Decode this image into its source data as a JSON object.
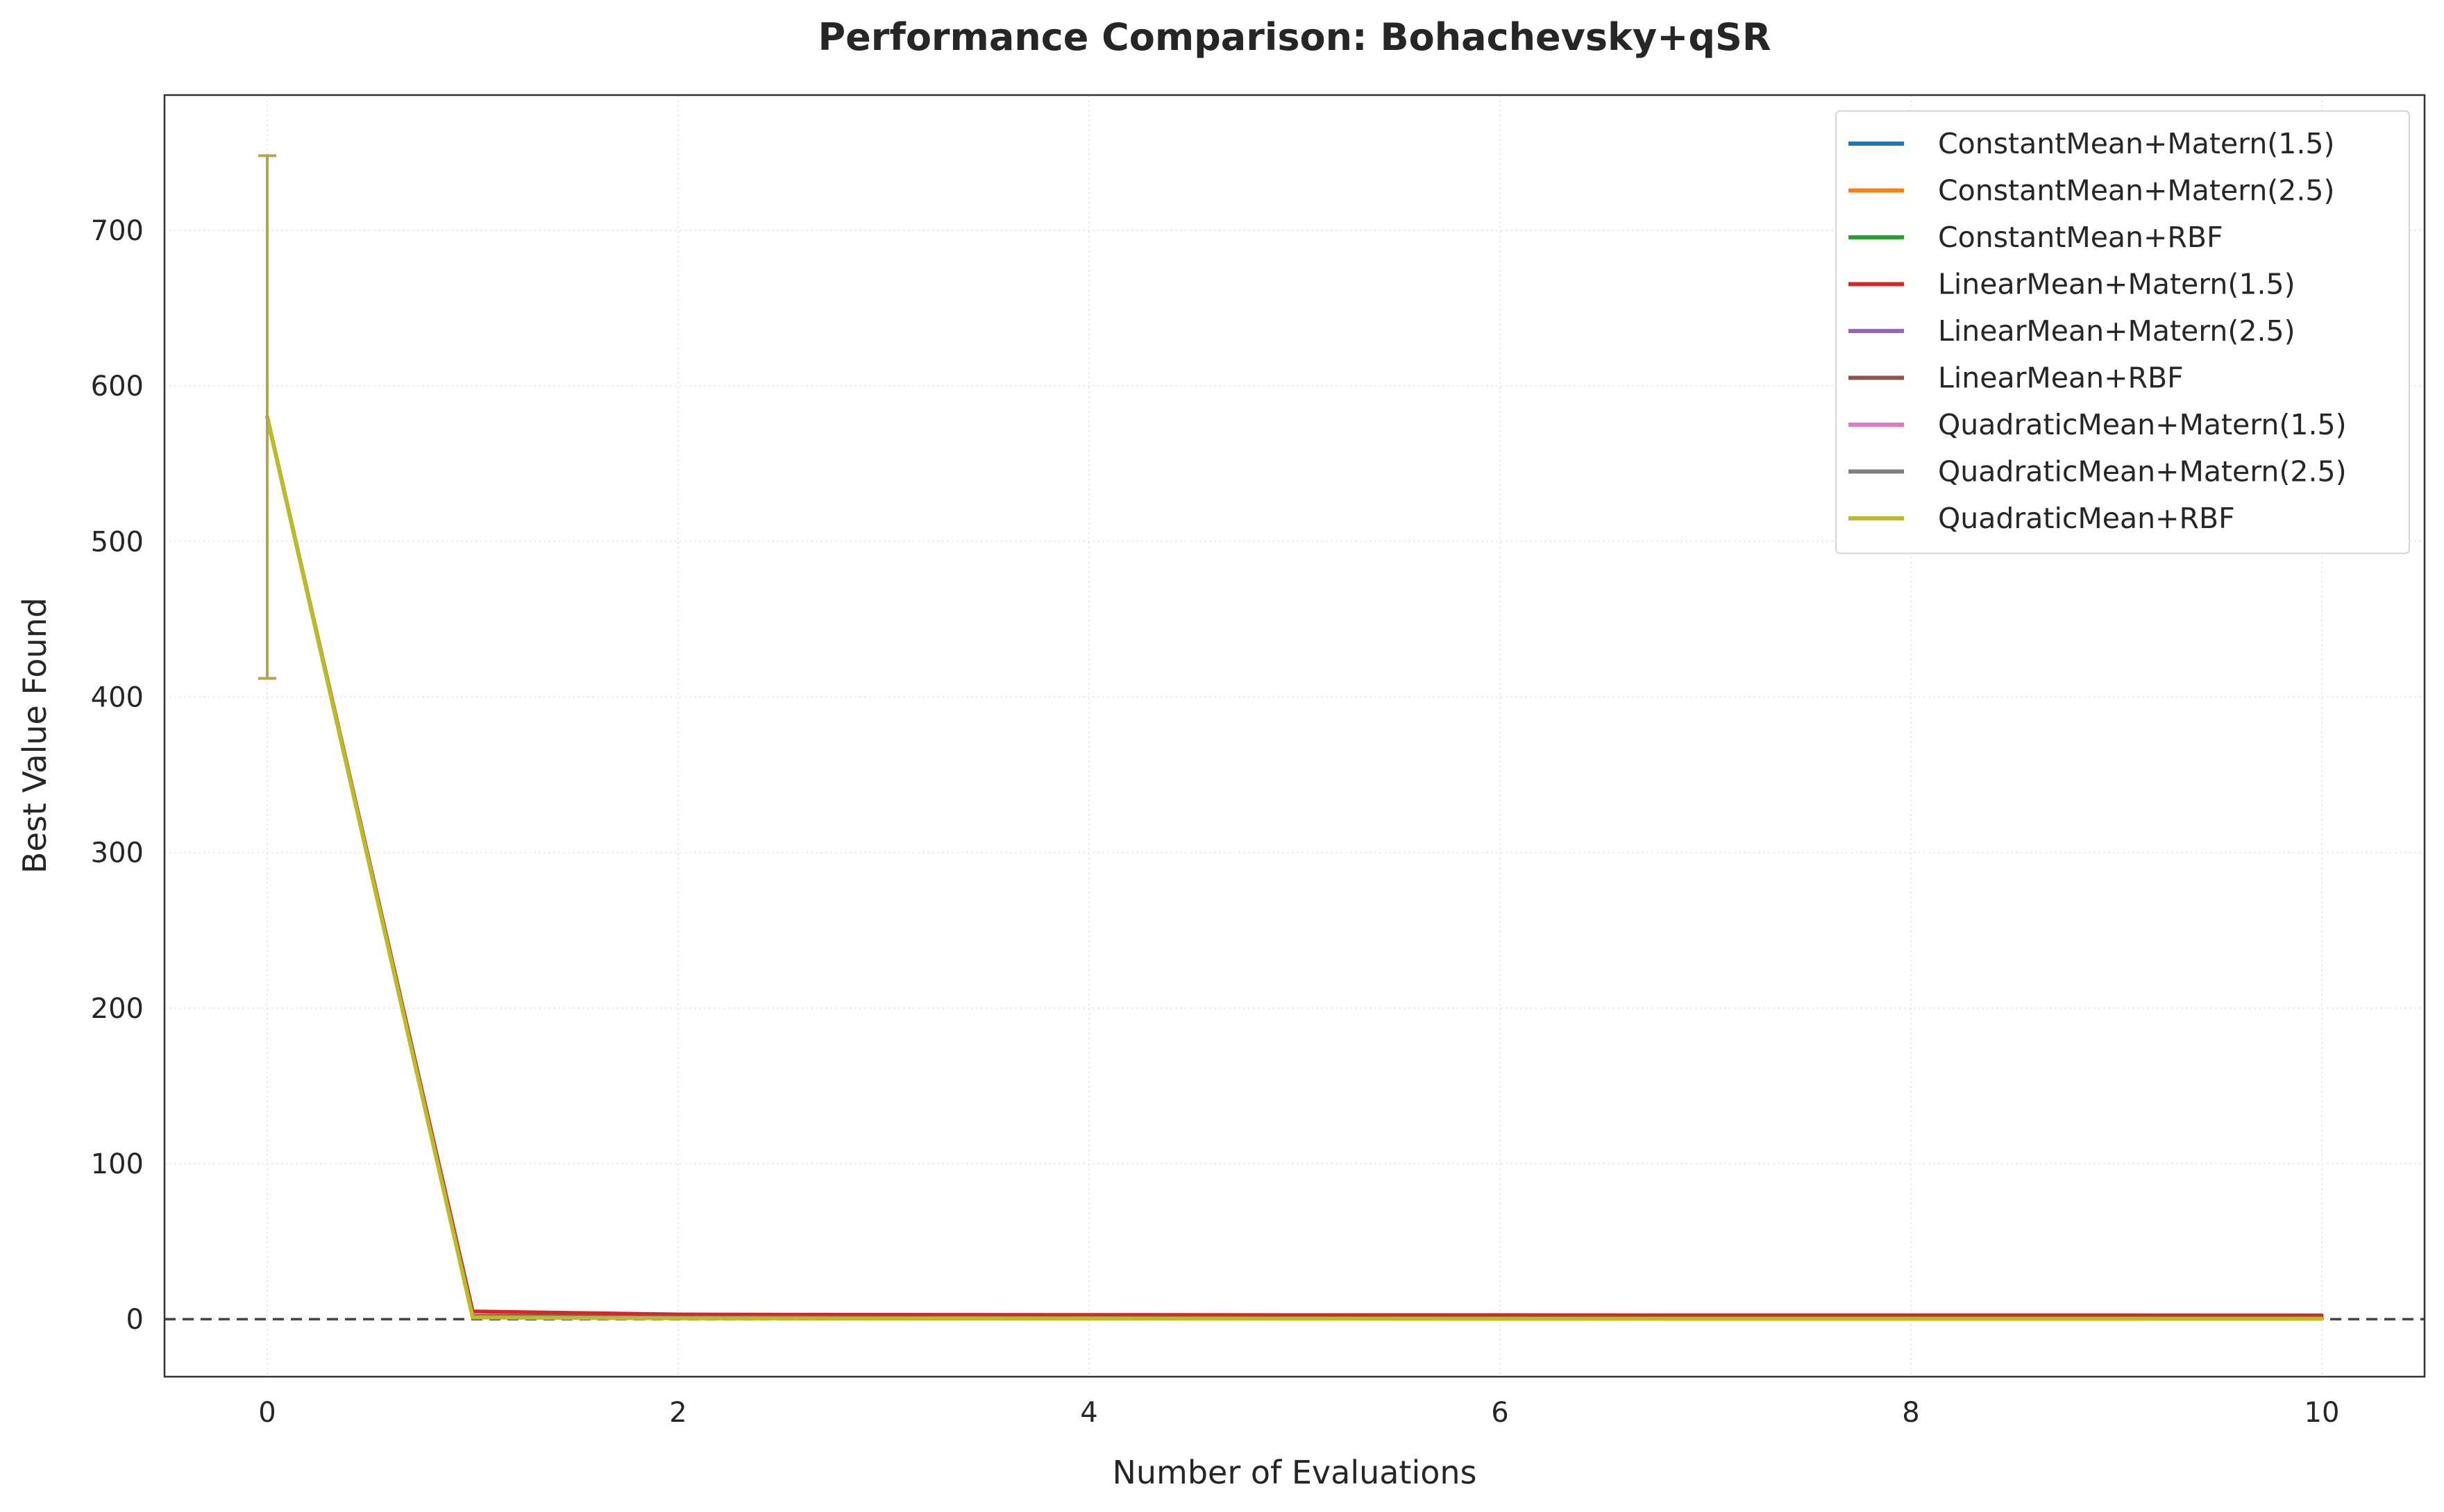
{
  "chart_data": {
    "type": "line",
    "title": "Performance Comparison: Bohachevsky+qSR",
    "xlabel": "Number of Evaluations",
    "ylabel": "Best Value Found",
    "xlim": [
      -0.5,
      10.5
    ],
    "ylim": [
      -37,
      787
    ],
    "x_ticks": [
      0,
      2,
      4,
      6,
      8,
      10
    ],
    "y_ticks": [
      0,
      100,
      200,
      300,
      400,
      500,
      600,
      700
    ],
    "grid": true,
    "legend_position": "top-right",
    "reference_line": {
      "y": 0,
      "style": "dashed",
      "color": "#444444"
    },
    "x": [
      0,
      1,
      2,
      3,
      4,
      5,
      6,
      7,
      8,
      9,
      10
    ],
    "series": [
      {
        "name": "ConstantMean+Matern(1.5)",
        "color": "#1f77b4",
        "values": [
          580,
          1.5,
          0.9,
          0.7,
          0.6,
          0.5,
          0.5,
          0.5,
          0.4,
          0.4,
          0.4
        ]
      },
      {
        "name": "ConstantMean+Matern(2.5)",
        "color": "#ff7f0e",
        "values": [
          580,
          1.8,
          1.0,
          0.8,
          0.7,
          0.6,
          0.6,
          0.5,
          0.5,
          0.5,
          0.5
        ]
      },
      {
        "name": "ConstantMean+RBF",
        "color": "#2ca02c",
        "values": [
          580,
          1.6,
          1.0,
          0.8,
          0.7,
          0.6,
          0.6,
          0.6,
          0.5,
          0.5,
          0.5
        ]
      },
      {
        "name": "LinearMean+Matern(1.5)",
        "color": "#d62728",
        "values": [
          580,
          5.0,
          3.0,
          2.8,
          2.7,
          2.6,
          2.6,
          2.5,
          2.5,
          2.5,
          2.4
        ]
      },
      {
        "name": "LinearMean+Matern(2.5)",
        "color": "#9467bd",
        "values": [
          580,
          2.0,
          1.2,
          1.0,
          0.9,
          0.8,
          0.8,
          0.7,
          0.7,
          0.7,
          0.7
        ]
      },
      {
        "name": "LinearMean+RBF",
        "color": "#8c564b",
        "values": [
          580,
          2.2,
          1.3,
          1.1,
          1.0,
          0.9,
          0.9,
          0.8,
          0.8,
          0.8,
          0.8
        ]
      },
      {
        "name": "QuadraticMean+Matern(1.5)",
        "color": "#e377c2",
        "values": [
          580,
          1.4,
          0.8,
          0.6,
          0.5,
          0.4,
          0.4,
          0.4,
          0.3,
          0.3,
          0.3
        ]
      },
      {
        "name": "QuadraticMean+Matern(2.5)",
        "color": "#7f7f7f",
        "values": [
          580,
          1.3,
          0.7,
          0.5,
          0.4,
          0.4,
          0.3,
          0.3,
          0.3,
          0.3,
          0.3
        ]
      },
      {
        "name": "QuadraticMean+RBF",
        "color": "#bcbd22",
        "values": [
          580,
          1.0,
          0.5,
          0.4,
          0.3,
          0.3,
          0.2,
          0.2,
          0.2,
          0.2,
          0.2
        ]
      }
    ],
    "error_bar": {
      "x": 0,
      "low": 412,
      "high": 748,
      "color": "#b5a350"
    }
  }
}
